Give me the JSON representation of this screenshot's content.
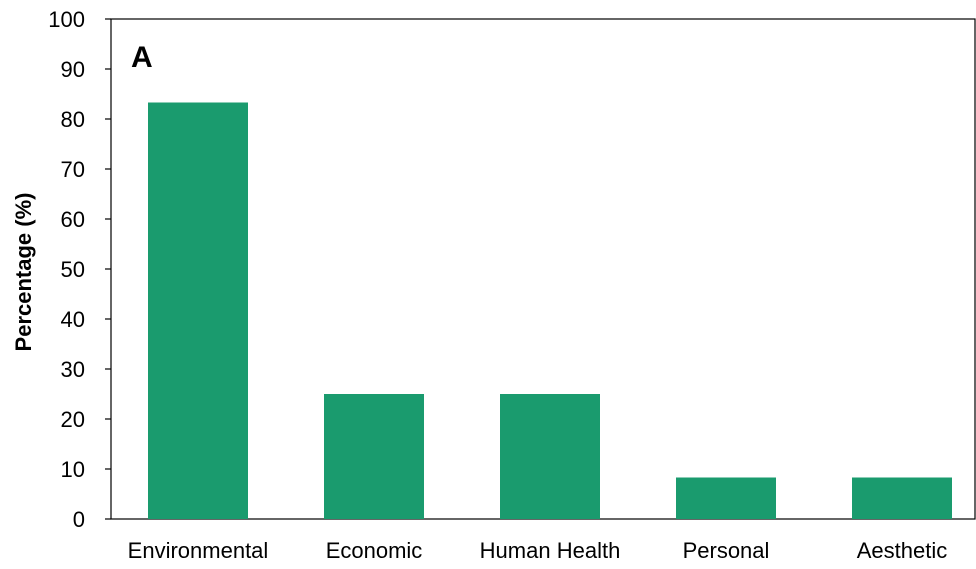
{
  "chart_data": {
    "type": "bar",
    "panel_label": "A",
    "categories": [
      "Environmental",
      "Economic",
      "Human Health",
      "Personal",
      "Aesthetic"
    ],
    "values": [
      83.3,
      25,
      25,
      8.3,
      8.3
    ],
    "ylabel": "Percentage  (%)",
    "ylim": [
      0,
      100
    ],
    "yticks": [
      0,
      10,
      20,
      30,
      40,
      50,
      60,
      70,
      80,
      90,
      100
    ],
    "grid": false,
    "bar_color": "#1a9b6e"
  }
}
